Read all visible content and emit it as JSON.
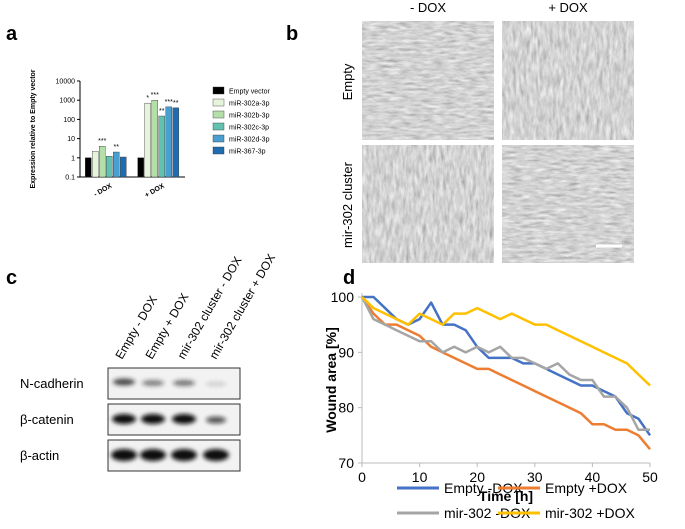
{
  "panel_labels": [
    "a",
    "b",
    "c",
    "d"
  ],
  "chart_data": [
    {
      "type": "bar",
      "y_label": "Expression relative to Empty vector",
      "categories": [
        "- DOX",
        "+ DOX"
      ],
      "yscale": "log",
      "ylim": [
        0.1,
        10000
      ],
      "yticks": [
        0.1,
        1,
        10,
        100,
        1000,
        10000
      ],
      "legend": "right",
      "series": [
        {
          "name": "Empty vector",
          "color": "#000000",
          "values": [
            1,
            1
          ],
          "annotations": [
            null,
            null
          ]
        },
        {
          "name": "miR-302a-3p",
          "color": "#e6f4dc",
          "values": [
            2.2,
            700
          ],
          "annotations": [
            null,
            "*"
          ]
        },
        {
          "name": "miR-302b-3p",
          "color": "#b5dfa9",
          "values": [
            4,
            1000
          ],
          "annotations": [
            "***",
            "***"
          ]
        },
        {
          "name": "miR-302c-3p",
          "color": "#62c2b1",
          "values": [
            1.2,
            150
          ],
          "annotations": [
            null,
            "**"
          ]
        },
        {
          "name": "miR-302d-3p",
          "color": "#4a9fd1",
          "values": [
            2,
            450
          ],
          "annotations": [
            "**",
            "***"
          ]
        },
        {
          "name": "miR-367-3p",
          "color": "#1f6db0",
          "values": [
            1.1,
            400
          ],
          "annotations": [
            null,
            "**"
          ]
        }
      ]
    },
    {
      "type": "line",
      "x_label": "Time [h]",
      "y_label": "Wound area [%]",
      "x": [
        0,
        2,
        4,
        6,
        8,
        10,
        12,
        14,
        16,
        18,
        20,
        22,
        24,
        26,
        28,
        30,
        32,
        34,
        36,
        38,
        40,
        42,
        44,
        46,
        48,
        50
      ],
      "xlim": [
        0,
        50
      ],
      "xticks": [
        0,
        10,
        20,
        30,
        40,
        50
      ],
      "ylim": [
        70,
        100
      ],
      "yticks": [
        70,
        80,
        90,
        100
      ],
      "legend": "bottom",
      "series": [
        {
          "name": "Empty -DOX",
          "color": "#4472c4",
          "values": [
            100,
            100,
            98,
            96,
            95,
            96,
            99,
            95,
            95,
            94,
            91,
            89,
            89,
            89,
            88,
            88,
            87,
            86,
            85,
            84,
            84,
            83,
            82,
            79,
            78,
            75
          ]
        },
        {
          "name": "Empty +DOX",
          "color": "#ed7d31",
          "values": [
            100,
            97,
            95,
            95,
            94,
            93,
            91,
            90,
            89,
            88,
            87,
            87,
            86,
            85,
            84,
            83,
            82,
            81,
            80,
            79,
            77,
            77,
            76,
            76,
            75,
            72.5
          ]
        },
        {
          "name": "mir-302 -DOX",
          "color": "#a5a5a5",
          "values": [
            100,
            96,
            95,
            94,
            93,
            92,
            92,
            90,
            91,
            90,
            91,
            90,
            91,
            89,
            89,
            88,
            87,
            88,
            86,
            85,
            85,
            82,
            82,
            80,
            76,
            76
          ]
        },
        {
          "name": "mir-302 +DOX",
          "color": "#ffc000",
          "values": [
            100,
            98,
            97,
            96,
            95,
            97,
            96,
            95,
            97,
            97,
            98,
            97,
            96,
            97,
            96,
            95,
            95,
            94,
            93,
            92,
            91,
            90,
            89,
            88,
            86,
            84
          ]
        }
      ]
    }
  ],
  "micrographs": {
    "columns": [
      "- DOX",
      "+ DOX"
    ],
    "rows": [
      "Empty",
      "mir-302 cluster"
    ]
  },
  "western_blot": {
    "lanes": [
      "Empty - DOX",
      "Empty + DOX",
      "mir-302 cluster - DOX",
      "mir-302 cluster + DOX"
    ],
    "proteins": [
      "N-cadherin",
      "β-catenin",
      "β-actin"
    ]
  }
}
